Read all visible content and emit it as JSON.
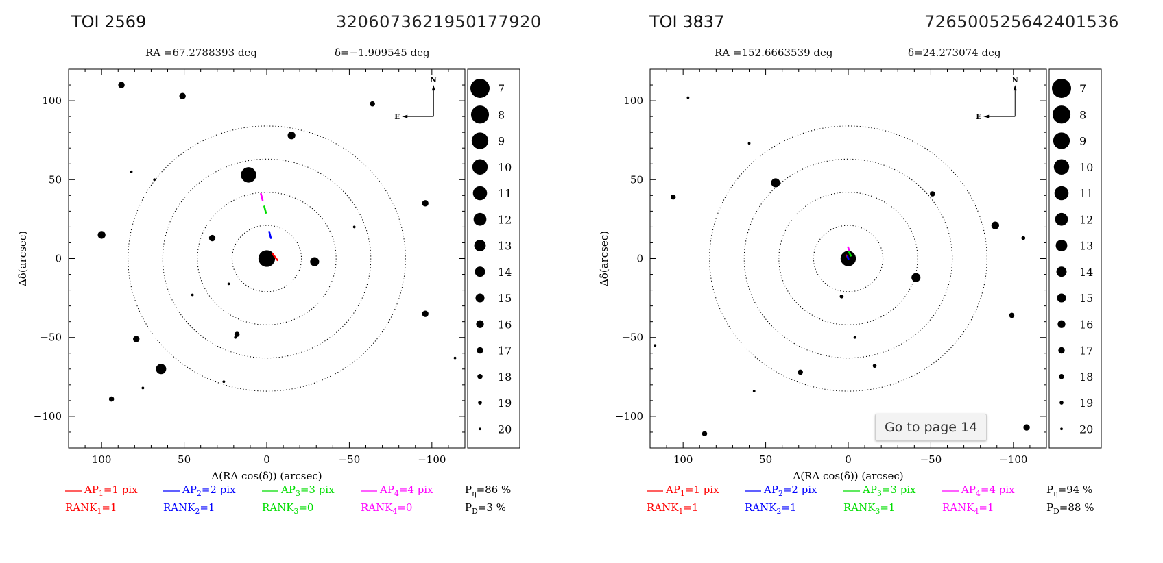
{
  "panels": [
    {
      "toi": "TOI 2569",
      "gaia_id": "3206073621950177920",
      "ra_text": "RA =67.2788393 deg",
      "dec_text": "δ=−1.909545 deg",
      "p_eta": "P",
      "p_eta_sub": "η",
      "p_eta_val": "=86 %",
      "p_d": "P",
      "p_d_sub": "D",
      "p_d_val": "=3 %",
      "ranks": [
        "1",
        "1",
        "0",
        "0"
      ]
    },
    {
      "toi": "TOI 3837",
      "gaia_id": "726500525642401536",
      "ra_text": "RA =152.6663539 deg",
      "dec_text": "δ=24.273074 deg",
      "p_eta": "P",
      "p_eta_sub": "η",
      "p_eta_val": "=94 %",
      "p_d": "P",
      "p_d_sub": "D",
      "p_d_val": "=88 %",
      "ranks": [
        "1",
        "1",
        "1",
        "1"
      ]
    }
  ],
  "tooltip": {
    "text": "Go to page 14"
  },
  "colors": {
    "ap1": "#ff0000",
    "ap2": "#0000ff",
    "ap3": "#00dd00",
    "ap4": "#ff00ff"
  },
  "chart_data": [
    {
      "type": "scatter",
      "xlabel": "Δ(RA cos(δ)) (arcsec)",
      "ylabel": "Δδ(arcsec)",
      "xlim": [
        120,
        -120
      ],
      "ylim": [
        -120,
        120
      ],
      "x_ticks": [
        100,
        50,
        0,
        -50,
        -100
      ],
      "x_tick_labels": [
        "100",
        "50",
        "0",
        "−50",
        "−100"
      ],
      "y_ticks": [
        100,
        50,
        0,
        -50,
        -100
      ],
      "y_tick_labels": [
        "100",
        "50",
        "0",
        "−50",
        "−100"
      ],
      "compass": {
        "north": "N",
        "east": "E"
      },
      "circles_arcsec": [
        21,
        42,
        63,
        84
      ],
      "stars": [
        {
          "x": 0,
          "y": 0,
          "mag": 9
        },
        {
          "x": 11,
          "y": 53,
          "mag": 10
        },
        {
          "x": -29,
          "y": -2,
          "mag": 15
        },
        {
          "x": 64,
          "y": -70,
          "mag": 14
        },
        {
          "x": -15,
          "y": 78,
          "mag": 16
        },
        {
          "x": 51,
          "y": 103,
          "mag": 17
        },
        {
          "x": -64,
          "y": 98,
          "mag": 18
        },
        {
          "x": 88,
          "y": 110,
          "mag": 17
        },
        {
          "x": 100,
          "y": 15,
          "mag": 16
        },
        {
          "x": -96,
          "y": 35,
          "mag": 17
        },
        {
          "x": -96,
          "y": -35,
          "mag": 17
        },
        {
          "x": 79,
          "y": -51,
          "mag": 17
        },
        {
          "x": 33,
          "y": 13,
          "mag": 17
        },
        {
          "x": 94,
          "y": -89,
          "mag": 18
        },
        {
          "x": 18,
          "y": -48,
          "mag": 18
        },
        {
          "x": -53,
          "y": 20,
          "mag": 20
        },
        {
          "x": 23,
          "y": -16,
          "mag": 20
        },
        {
          "x": 45,
          "y": -23,
          "mag": 20
        },
        {
          "x": 82,
          "y": 55,
          "mag": 20
        },
        {
          "x": 68,
          "y": 50,
          "mag": 20
        },
        {
          "x": -114,
          "y": -63,
          "mag": 20
        },
        {
          "x": 75,
          "y": -82,
          "mag": 20
        },
        {
          "x": 26,
          "y": -78,
          "mag": 20
        },
        {
          "x": 19,
          "y": -50,
          "mag": 20
        }
      ],
      "centroids": [
        {
          "ap": 1,
          "x": -5,
          "y": 1,
          "dx": -1.5,
          "dy": -2
        },
        {
          "ap": 2,
          "x": -2,
          "y": 15,
          "dx": -0.5,
          "dy": -2
        },
        {
          "ap": 3,
          "x": 1,
          "y": 31,
          "dx": -0.5,
          "dy": -2
        },
        {
          "ap": 4,
          "x": 3,
          "y": 39,
          "dx": -0.5,
          "dy": -2
        }
      ],
      "legend": {
        "title": "",
        "mags": [
          7,
          8,
          9,
          10,
          11,
          12,
          13,
          14,
          15,
          16,
          17,
          18,
          19,
          20
        ],
        "mag_labels": [
          "7",
          "8",
          "9",
          "10",
          "11",
          "12",
          "13",
          "14",
          "15",
          "16",
          "17",
          "18",
          "19",
          "20"
        ]
      },
      "ap_labels": [
        {
          "pre": "AP",
          "sub": "1",
          "post": "=1 pix"
        },
        {
          "pre": "AP",
          "sub": "2",
          "post": "=2 pix"
        },
        {
          "pre": "AP",
          "sub": "3",
          "post": "=3 pix"
        },
        {
          "pre": "AP",
          "sub": "4",
          "post": "=4 pix"
        }
      ],
      "rank_labels": [
        {
          "pre": "RANK",
          "sub": "1",
          "post": "=1"
        },
        {
          "pre": "RANK",
          "sub": "2",
          "post": "=1"
        },
        {
          "pre": "RANK",
          "sub": "3",
          "post": "=0"
        },
        {
          "pre": "RANK",
          "sub": "4",
          "post": "=0"
        }
      ]
    },
    {
      "type": "scatter",
      "xlabel": "Δ(RA cos(δ)) (arcsec)",
      "ylabel": "Δδ(arcsec)",
      "xlim": [
        120,
        -120
      ],
      "ylim": [
        -120,
        120
      ],
      "x_ticks": [
        100,
        50,
        0,
        -50,
        -100
      ],
      "x_tick_labels": [
        "100",
        "50",
        "0",
        "−50",
        "−100"
      ],
      "y_ticks": [
        100,
        50,
        0,
        -50,
        -100
      ],
      "y_tick_labels": [
        "100",
        "50",
        "0",
        "−50",
        "−100"
      ],
      "compass": {
        "north": "N",
        "east": "E"
      },
      "circles_arcsec": [
        21,
        42,
        63,
        84
      ],
      "stars": [
        {
          "x": 0,
          "y": 0,
          "mag": 10
        },
        {
          "x": -41,
          "y": -12,
          "mag": 15
        },
        {
          "x": 44,
          "y": 48,
          "mag": 15
        },
        {
          "x": -89,
          "y": 21,
          "mag": 16
        },
        {
          "x": -51,
          "y": 41,
          "mag": 18
        },
        {
          "x": -99,
          "y": -36,
          "mag": 18
        },
        {
          "x": -108,
          "y": -107,
          "mag": 17
        },
        {
          "x": 87,
          "y": -111,
          "mag": 18
        },
        {
          "x": 106,
          "y": 39,
          "mag": 18
        },
        {
          "x": 29,
          "y": -72,
          "mag": 18
        },
        {
          "x": -106,
          "y": 13,
          "mag": 19
        },
        {
          "x": -16,
          "y": -68,
          "mag": 19
        },
        {
          "x": 97,
          "y": 102,
          "mag": 20
        },
        {
          "x": 60,
          "y": 73,
          "mag": 20
        },
        {
          "x": 4,
          "y": -24,
          "mag": 19
        },
        {
          "x": -4,
          "y": -50,
          "mag": 20
        },
        {
          "x": 57,
          "y": -84,
          "mag": 20
        },
        {
          "x": 117,
          "y": -55,
          "mag": 20
        }
      ],
      "centroids": [
        {
          "ap": 4,
          "x": -0.3,
          "y": 6,
          "dx": -0.4,
          "dy": -1.2
        },
        {
          "ap": 3,
          "x": -1,
          "y": 3,
          "dx": -0.6,
          "dy": -1.2
        },
        {
          "ap": 1,
          "x": 0.5,
          "y": 1,
          "dx": -0.5,
          "dy": -1
        },
        {
          "ap": 2,
          "x": 0.2,
          "y": 0.5,
          "dx": -0.3,
          "dy": -0.8
        }
      ],
      "legend": {
        "title": "",
        "mags": [
          7,
          8,
          9,
          10,
          11,
          12,
          13,
          14,
          15,
          16,
          17,
          18,
          19,
          20
        ],
        "mag_labels": [
          "7",
          "8",
          "9",
          "10",
          "11",
          "12",
          "13",
          "14",
          "15",
          "16",
          "17",
          "18",
          "19",
          "20"
        ]
      },
      "ap_labels": [
        {
          "pre": "AP",
          "sub": "1",
          "post": "=1 pix"
        },
        {
          "pre": "AP",
          "sub": "2",
          "post": "=2 pix"
        },
        {
          "pre": "AP",
          "sub": "3",
          "post": "=3 pix"
        },
        {
          "pre": "AP",
          "sub": "4",
          "post": "=4 pix"
        }
      ],
      "rank_labels": [
        {
          "pre": "RANK",
          "sub": "1",
          "post": "=1"
        },
        {
          "pre": "RANK",
          "sub": "2",
          "post": "=1"
        },
        {
          "pre": "RANK",
          "sub": "3",
          "post": "=1"
        },
        {
          "pre": "RANK",
          "sub": "4",
          "post": "=1"
        }
      ]
    }
  ]
}
